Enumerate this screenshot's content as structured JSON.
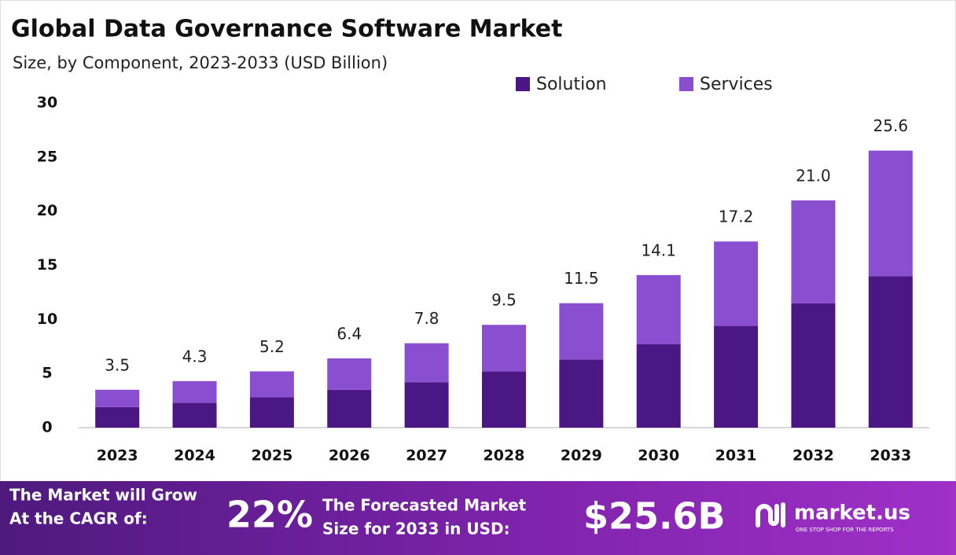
{
  "chart_data": {
    "type": "stacked-bar",
    "title": "Global Data Governance Software Market",
    "subtitle": "Size, by Component, 2023-2033 (USD Billion)",
    "categories": [
      "2023",
      "2024",
      "2025",
      "2026",
      "2027",
      "2028",
      "2029",
      "2030",
      "2031",
      "2032",
      "2033"
    ],
    "series": [
      {
        "name": "Solution",
        "color": "#4b1784",
        "values": [
          1.9,
          2.3,
          2.8,
          3.5,
          4.2,
          5.2,
          6.3,
          7.7,
          9.4,
          11.5,
          14.0
        ]
      },
      {
        "name": "Services",
        "color": "#8a4fd1",
        "values": [
          1.6,
          2.0,
          2.4,
          2.9,
          3.6,
          4.3,
          5.2,
          6.4,
          7.8,
          9.5,
          11.6
        ]
      }
    ],
    "totals": {
      "values": [
        3.5,
        4.3,
        5.2,
        6.4,
        7.8,
        9.5,
        11.5,
        14.1,
        17.2,
        21.0,
        25.6
      ],
      "value_labels": [
        "3.5",
        "4.3",
        "5.2",
        "6.4",
        "7.8",
        "9.5",
        "11.5",
        "14.1",
        "17.2",
        "21.0",
        "25.6"
      ]
    },
    "ylim": [
      0,
      30
    ],
    "yticks": [
      0,
      5,
      10,
      15,
      20,
      25,
      30
    ],
    "grid": false,
    "legend": "top"
  },
  "footer": {
    "cagr_text": [
      "The Market will Grow",
      "At the CAGR of:"
    ],
    "cagr": "22%",
    "forecast_text": [
      "The Forecasted Market",
      "Size for 2033 in USD:"
    ],
    "forecast": "$25.6B",
    "brand": "market.us",
    "tagline": "ONE STOP SHOP FOR THE REPORTS"
  }
}
